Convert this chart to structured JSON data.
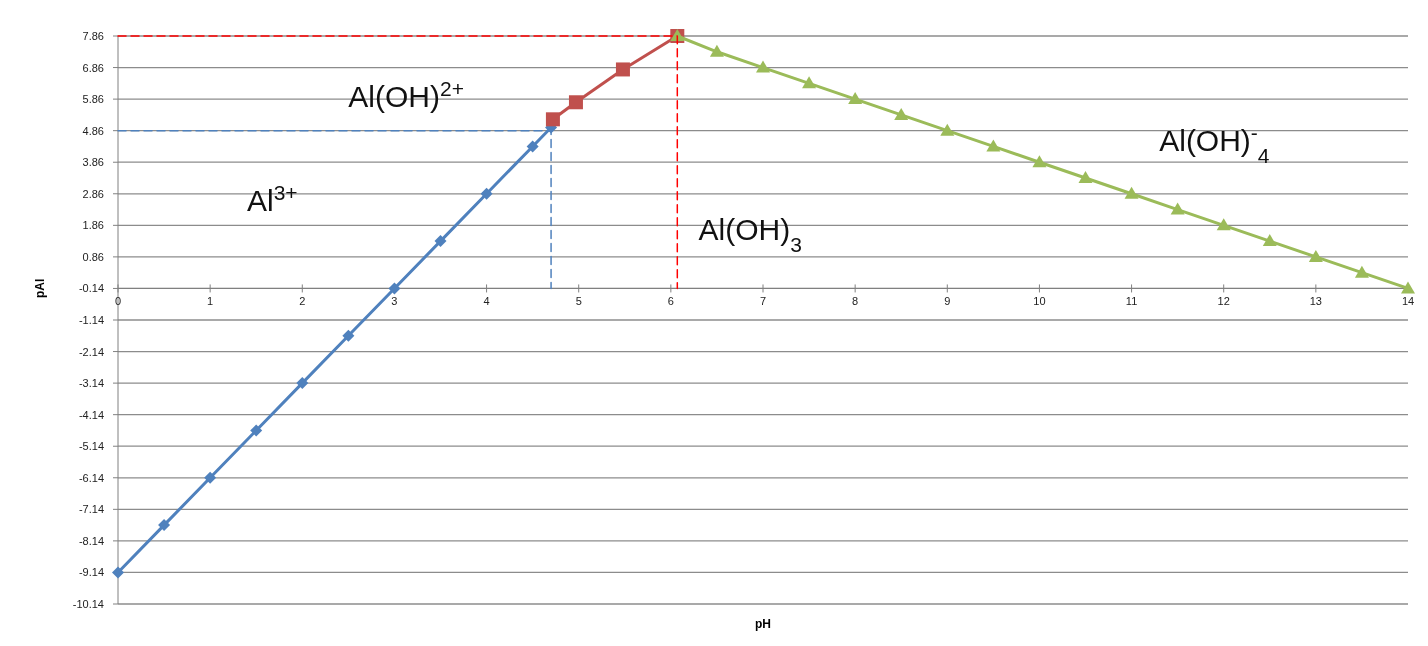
{
  "chart_data": {
    "type": "line",
    "xlabel": "pH",
    "ylabel": "pAl",
    "xlim": [
      0,
      14
    ],
    "xticks": [
      0,
      1,
      2,
      3,
      4,
      5,
      6,
      7,
      8,
      9,
      10,
      11,
      12,
      13,
      14
    ],
    "ylim": [
      -10.14,
      7.86
    ],
    "yticks": [
      -10.14,
      -9.14,
      -8.14,
      -7.14,
      -6.14,
      -5.14,
      -4.14,
      -3.14,
      -2.14,
      -1.14,
      -0.14,
      0.86,
      1.86,
      2.86,
      3.86,
      4.86,
      5.86,
      6.86,
      7.86
    ],
    "grid": "y",
    "series": [
      {
        "color": "#4f81bd",
        "marker": "diamond",
        "x": [
          0,
          0.5,
          1,
          1.5,
          2,
          2.5,
          3,
          3.5,
          4,
          4.5,
          4.7
        ],
        "values": [
          -9.14,
          -7.64,
          -6.14,
          -4.64,
          -3.14,
          -1.64,
          -0.14,
          1.36,
          2.86,
          4.36,
          4.96
        ]
      },
      {
        "color": "#c0504d",
        "marker": "square",
        "x": [
          4.72,
          4.97,
          5.48,
          6.07
        ],
        "values": [
          5.22,
          5.76,
          6.8,
          7.86
        ]
      },
      {
        "color": "#9bbb59",
        "marker": "triangle",
        "x": [
          6.07,
          6.5,
          7,
          7.5,
          8,
          8.5,
          9,
          9.5,
          10,
          10.5,
          11,
          11.5,
          12,
          12.5,
          13,
          13.5,
          14
        ],
        "values": [
          7.86,
          7.36,
          6.86,
          6.36,
          5.86,
          5.36,
          4.86,
          4.36,
          3.86,
          3.36,
          2.86,
          2.36,
          1.86,
          1.36,
          0.86,
          0.36,
          -0.14
        ]
      },
      {
        "color": "#4f81bd",
        "marker": "none",
        "line_style": "dashed",
        "x": [
          0,
          4.7,
          4.7
        ],
        "values": [
          4.86,
          4.86,
          -0.14
        ]
      },
      {
        "color": "#ff0000",
        "marker": "none",
        "line_style": "dashed",
        "x": [
          0,
          6.07,
          6.07
        ],
        "values": [
          7.86,
          7.86,
          -0.14
        ]
      }
    ],
    "annotations": [
      "Al$^{3+}$",
      "Al(OH)$^{2+}$",
      "Al(OH)$_{3}$",
      "Al(OH)$^{-}$$_{4}$"
    ]
  }
}
